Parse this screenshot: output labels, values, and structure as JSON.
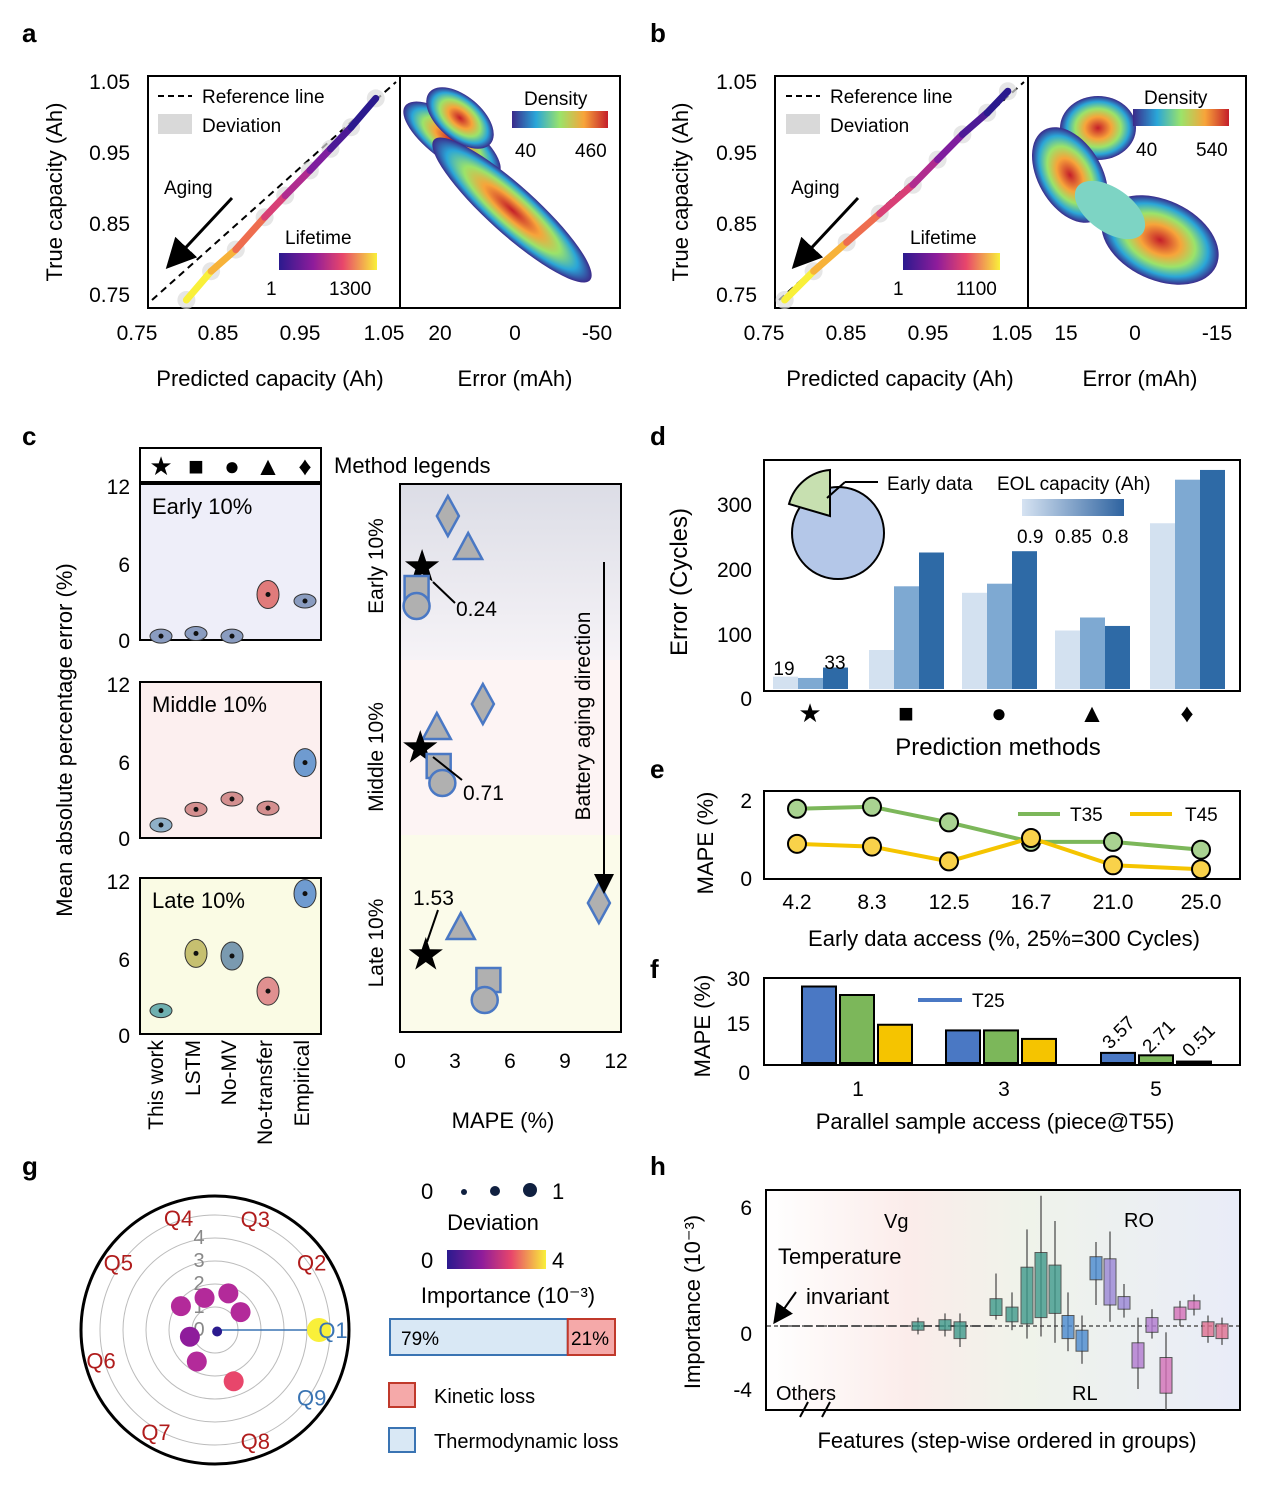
{
  "panel_labels": {
    "a": "a",
    "b": "b",
    "c": "c",
    "d": "d",
    "e": "e",
    "f": "f",
    "g": "g",
    "h": "h"
  },
  "colors": {
    "blue": "#4a78c4",
    "green": "#7cb75a",
    "yellow": "#f5c400",
    "red": "#c0392b",
    "gray": "#a9a9a9"
  },
  "chart_data": [
    {
      "id": "a",
      "type": "scatter",
      "xlabel": "Predicted capacity (Ah)",
      "ylabel": "True capacity (Ah)",
      "xticks": [
        "0.75",
        "0.85",
        "0.95",
        "1.05"
      ],
      "yticks": [
        "0.75",
        "0.85",
        "0.95",
        "1.05"
      ],
      "xlim": [
        0.75,
        1.05
      ],
      "ylim": [
        0.75,
        1.05
      ],
      "legend": [
        "Reference line",
        "Deviation"
      ],
      "annotation": "Aging",
      "colorbar": {
        "label": "Lifetime",
        "min": "1",
        "max": "1300"
      },
      "points": [
        [
          0.81,
          0.75
        ],
        [
          0.84,
          0.79
        ],
        [
          0.87,
          0.82
        ],
        [
          0.905,
          0.865
        ],
        [
          0.93,
          0.895
        ],
        [
          0.96,
          0.93
        ],
        [
          0.985,
          0.96
        ],
        [
          1.01,
          0.99
        ],
        [
          1.04,
          1.03
        ]
      ],
      "error_panel": {
        "xlabel": "Error (mAh)",
        "xticks": [
          "20",
          "0",
          "-50"
        ],
        "density": {
          "label": "Density",
          "min": "40",
          "max": "460"
        }
      }
    },
    {
      "id": "b",
      "type": "scatter",
      "xlabel": "Predicted capacity (Ah)",
      "ylabel": "True capacity (Ah)",
      "xticks": [
        "0.75",
        "0.85",
        "0.95",
        "1.05"
      ],
      "yticks": [
        "0.75",
        "0.85",
        "0.95",
        "1.05"
      ],
      "xlim": [
        0.75,
        1.05
      ],
      "ylim": [
        0.75,
        1.05
      ],
      "legend": [
        "Reference line",
        "Deviation"
      ],
      "annotation": "Aging",
      "colorbar": {
        "label": "Lifetime",
        "min": "1",
        "max": "1100"
      },
      "points": [
        [
          0.775,
          0.75
        ],
        [
          0.81,
          0.79
        ],
        [
          0.85,
          0.83
        ],
        [
          0.89,
          0.87
        ],
        [
          0.93,
          0.91
        ],
        [
          0.96,
          0.945
        ],
        [
          0.99,
          0.98
        ],
        [
          1.02,
          1.01
        ],
        [
          1.045,
          1.04
        ]
      ],
      "error_panel": {
        "xlabel": "Error (mAh)",
        "xticks": [
          "15",
          "0",
          "-15"
        ],
        "density": {
          "label": "Density",
          "min": "40",
          "max": "540"
        }
      }
    },
    {
      "id": "c-left",
      "type": "violin",
      "ylabel": "Mean absolute percentage error (%)",
      "yticks": [
        "0",
        "6",
        "12"
      ],
      "ylim": [
        0,
        12
      ],
      "categories": [
        "This work",
        "LSTM",
        "No-MV",
        "No-transfer",
        "Empirical"
      ],
      "method_legend_label": "Method legends",
      "method_symbols": [
        "★",
        "■",
        "●",
        "▲",
        "♦"
      ],
      "groups": [
        {
          "name": "Early 10%",
          "values": [
            0.3,
            0.5,
            0.3,
            3.5,
            3.0
          ]
        },
        {
          "name": "Middle 10%",
          "values": [
            1.0,
            2.2,
            3.0,
            2.3,
            5.8
          ]
        },
        {
          "name": "Late 10%",
          "values": [
            1.8,
            6.2,
            6.0,
            3.3,
            10.8
          ]
        }
      ]
    },
    {
      "id": "c-right",
      "type": "scatter",
      "xlabel": "MAPE (%)",
      "xticks": [
        "0",
        "3",
        "6",
        "9",
        "12"
      ],
      "xlim": [
        0,
        12
      ],
      "row_labels": [
        "Early 10%",
        "Middle 10%",
        "Late 10%"
      ],
      "arrow_label": "Battery aging direction",
      "series": [
        {
          "stage": "Early 10%",
          "marks": [
            {
              "symbol": "diamond",
              "x": 2.6
            },
            {
              "symbol": "triangle",
              "x": 3.7
            },
            {
              "symbol": "star",
              "x": 1.2
            },
            {
              "symbol": "square",
              "x": 0.9
            },
            {
              "symbol": "circle",
              "x": 0.9
            }
          ],
          "annotation": "0.24"
        },
        {
          "stage": "Middle 10%",
          "marks": [
            {
              "symbol": "diamond",
              "x": 4.5
            },
            {
              "symbol": "triangle",
              "x": 2.0
            },
            {
              "symbol": "star",
              "x": 1.1
            },
            {
              "symbol": "square",
              "x": 2.1
            },
            {
              "symbol": "circle",
              "x": 2.3
            }
          ],
          "annotation": "0.71"
        },
        {
          "stage": "Late 10%",
          "marks": [
            {
              "symbol": "diamond",
              "x": 10.8
            },
            {
              "symbol": "triangle",
              "x": 3.3
            },
            {
              "symbol": "star",
              "x": 1.4
            },
            {
              "symbol": "square",
              "x": 4.8
            },
            {
              "symbol": "circle",
              "x": 4.6
            }
          ],
          "annotation": "1.53"
        }
      ]
    },
    {
      "id": "d",
      "type": "bar",
      "xlabel": "Prediction methods",
      "ylabel": "Error (Cycles)",
      "yticks": [
        "0",
        "100",
        "200",
        "300"
      ],
      "ylim": [
        0,
        340
      ],
      "categories": [
        "★",
        "■",
        "●",
        "▲",
        "♦"
      ],
      "series": [
        {
          "name": "0.9",
          "values": [
            19,
            60,
            148,
            90,
            255
          ]
        },
        {
          "name": "0.85",
          "values": [
            17,
            158,
            162,
            110,
            322
          ]
        },
        {
          "name": "0.8",
          "values": [
            33,
            210,
            212,
            97,
            337
          ]
        }
      ],
      "data_labels": [
        "19",
        "33"
      ],
      "legend_title": "EOL capacity (Ah)",
      "pie_label": "Early data",
      "pie_fraction": 0.25
    },
    {
      "id": "e",
      "type": "line",
      "xlabel": "Early data access (%, 25%=300 Cycles)",
      "ylabel": "MAPE (%)",
      "categories": [
        "4.2",
        "8.3",
        "12.5",
        "16.7",
        "21.0",
        "25.0"
      ],
      "yticks": [
        "0",
        "2"
      ],
      "ylim": [
        0,
        2
      ],
      "series": [
        {
          "name": "T35",
          "values": [
            1.75,
            1.8,
            1.4,
            0.9,
            0.9,
            0.7
          ]
        },
        {
          "name": "T45",
          "values": [
            0.85,
            0.78,
            0.4,
            1.0,
            0.3,
            0.2
          ]
        }
      ]
    },
    {
      "id": "f",
      "type": "bar",
      "xlabel": "Parallel sample access (piece@T55)",
      "ylabel": "MAPE (%)",
      "categories": [
        "1",
        "3",
        "5"
      ],
      "yticks": [
        "0",
        "15",
        "30"
      ],
      "ylim": [
        0,
        30
      ],
      "series": [
        {
          "name": "T25",
          "values": [
            27,
            11.5,
            3.57
          ]
        },
        {
          "name": "",
          "values": [
            24,
            11.5,
            2.71
          ]
        },
        {
          "name": "",
          "values": [
            13.5,
            8.5,
            0.51
          ]
        }
      ],
      "data_labels": [
        "3.57",
        "2.71",
        "0.51"
      ]
    },
    {
      "id": "g",
      "type": "polar",
      "axes": [
        "Q1",
        "Q2",
        "Q3",
        "Q4",
        "Q5",
        "Q6",
        "Q7",
        "Q8",
        "Q9"
      ],
      "radial_ticks": [
        "0",
        "1",
        "2",
        "3",
        "4"
      ],
      "points": [
        {
          "axis": "Q1",
          "r": 4.0,
          "importance": 4.0
        },
        {
          "axis": "Q2",
          "r": 1.2,
          "importance": 2.2
        },
        {
          "axis": "Q3",
          "r": 1.5,
          "importance": 2.0
        },
        {
          "axis": "Q4",
          "r": 1.3,
          "importance": 1.8
        },
        {
          "axis": "Q5",
          "r": 1.6,
          "importance": 1.6
        },
        {
          "axis": "Q6",
          "r": 1.0,
          "importance": 1.2
        },
        {
          "axis": "Q7",
          "r": 1.4,
          "importance": 2.0
        },
        {
          "axis": "Q8",
          "r": 2.1,
          "importance": 3.2
        },
        {
          "axis": "Q9",
          "r": 0.1,
          "importance": 0.0
        }
      ],
      "deviation_legend": {
        "min": "0",
        "max": "1",
        "label": "Deviation"
      },
      "importance_legend": {
        "min": "0",
        "max": "4",
        "label": "Importance (10⁻³)"
      },
      "share": [
        {
          "name": "Thermodynamic loss",
          "percent": "79%",
          "value": 79
        },
        {
          "name": "Kinetic loss",
          "percent": "21%",
          "value": 21
        }
      ]
    },
    {
      "id": "h",
      "type": "box",
      "xlabel": "Features (step-wise ordered in groups)",
      "ylabel": "Importance (10⁻³)",
      "yticks": [
        "-4",
        "0",
        "6"
      ],
      "ylim": [
        -4.5,
        7
      ],
      "groups": [
        "Others",
        "Vg",
        "RO",
        "RL"
      ],
      "annotation": [
        "Temperature",
        "invariant"
      ]
    }
  ]
}
